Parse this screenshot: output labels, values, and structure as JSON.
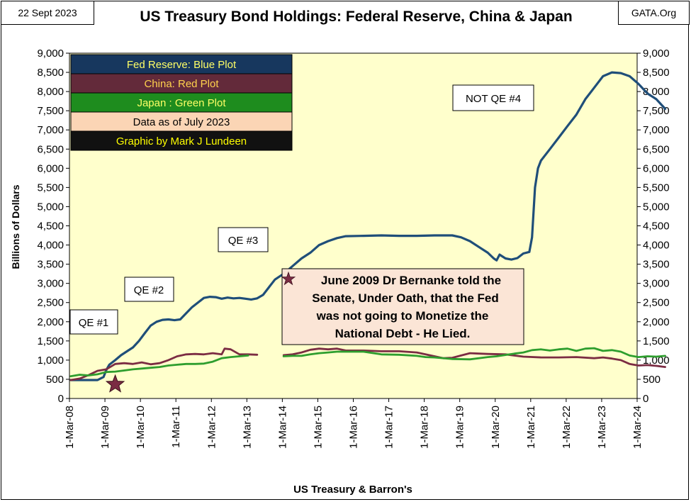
{
  "header": {
    "date": "22 Sept 2023",
    "title": "US Treasury Bond Holdings: Federal Reserve, China & Japan",
    "source": "GATA.Org"
  },
  "chart_data": {
    "type": "line",
    "xlabel": "US Treasury & Barron's",
    "ylabel": "Billions of Dollars",
    "ylim": [
      0,
      9000
    ],
    "xlim": [
      "2008-03-01",
      "2024-03-01"
    ],
    "y_ticks": [
      "0",
      "500",
      "1,000",
      "1,500",
      "2,000",
      "2,500",
      "3,000",
      "3,500",
      "4,000",
      "4,500",
      "5,000",
      "5,500",
      "6,000",
      "6,500",
      "7,000",
      "7,500",
      "8,000",
      "8,500",
      "9,000"
    ],
    "x_ticks": [
      "1-Mar-08",
      "1-Mar-09",
      "1-Mar-10",
      "1-Mar-11",
      "1-Mar-12",
      "1-Mar-13",
      "1-Mar-14",
      "1-Mar-15",
      "1-Mar-16",
      "1-Mar-17",
      "1-Mar-18",
      "1-Mar-19",
      "1-Mar-20",
      "1-Mar-21",
      "1-Mar-22",
      "1-Mar-23",
      "1-Mar-24"
    ],
    "grid": false,
    "legend": {
      "placement": "top-left",
      "items": [
        {
          "text": "Fed Reserve: Blue Plot",
          "bg": "#17375e",
          "color": "#ffff66"
        },
        {
          "text": "China: Red Plot",
          "bg": "#632a3a",
          "color": "#ffd24d"
        },
        {
          "text": "Japan : Green Plot",
          "bg": "#1e8c1e",
          "color": "#ffff66"
        },
        {
          "text": "Data as of July 2023",
          "bg": "#fbd5b5",
          "color": "#000000"
        },
        {
          "text": "Graphic by Mark J Lundeen",
          "bg": "#111111",
          "color": "#ffff00"
        }
      ]
    },
    "annotations": {
      "qe1": "QE #1",
      "qe2": "QE #2",
      "qe3": "QE #3",
      "qe4": "NOT QE #4",
      "note_lines": [
        "June 2009 Dr Bernanke told the",
        "Senate, Under Oath, that the Fed",
        "was not going to Monetize the",
        "National Debt - He Lied."
      ],
      "star_date": "2009-06"
    },
    "series": [
      {
        "name": "Fed Reserve",
        "color": "#1f4e79",
        "points": [
          [
            "2008-03",
            480
          ],
          [
            "2008-06",
            480
          ],
          [
            "2008-09",
            480
          ],
          [
            "2008-12",
            480
          ],
          [
            "2009-02",
            560
          ],
          [
            "2009-03",
            740
          ],
          [
            "2009-04",
            880
          ],
          [
            "2009-06",
            1000
          ],
          [
            "2009-08",
            1130
          ],
          [
            "2009-10",
            1230
          ],
          [
            "2009-12",
            1330
          ],
          [
            "2010-02",
            1500
          ],
          [
            "2010-04",
            1700
          ],
          [
            "2010-06",
            1900
          ],
          [
            "2010-08",
            2000
          ],
          [
            "2010-10",
            2050
          ],
          [
            "2010-12",
            2060
          ],
          [
            "2011-02",
            2040
          ],
          [
            "2011-04",
            2060
          ],
          [
            "2011-06",
            2220
          ],
          [
            "2011-08",
            2380
          ],
          [
            "2011-10",
            2500
          ],
          [
            "2011-12",
            2620
          ],
          [
            "2012-02",
            2650
          ],
          [
            "2012-04",
            2640
          ],
          [
            "2012-06",
            2600
          ],
          [
            "2012-08",
            2630
          ],
          [
            "2012-10",
            2610
          ],
          [
            "2012-12",
            2620
          ],
          [
            "2013-02",
            2600
          ],
          [
            "2013-04",
            2580
          ],
          [
            "2013-06",
            2610
          ],
          [
            "2013-08",
            2700
          ],
          [
            "2013-10",
            2900
          ],
          [
            "2013-12",
            3100
          ],
          [
            "2014-03",
            3250
          ],
          [
            "2014-06",
            3450
          ],
          [
            "2014-09",
            3650
          ],
          [
            "2014-12",
            3800
          ],
          [
            "2015-03",
            4000
          ],
          [
            "2015-06",
            4100
          ],
          [
            "2015-09",
            4180
          ],
          [
            "2015-12",
            4230
          ],
          [
            "2016-06",
            4240
          ],
          [
            "2016-12",
            4250
          ],
          [
            "2017-06",
            4240
          ],
          [
            "2017-12",
            4240
          ],
          [
            "2018-06",
            4250
          ],
          [
            "2018-12",
            4250
          ],
          [
            "2019-03",
            4200
          ],
          [
            "2019-06",
            4100
          ],
          [
            "2019-09",
            3950
          ],
          [
            "2019-12",
            3800
          ],
          [
            "2020-02",
            3650
          ],
          [
            "2020-03",
            3600
          ],
          [
            "2020-04",
            3750
          ],
          [
            "2020-06",
            3650
          ],
          [
            "2020-08",
            3620
          ],
          [
            "2020-10",
            3660
          ],
          [
            "2020-12",
            3780
          ],
          [
            "2021-02",
            3820
          ],
          [
            "2021-03",
            4200
          ],
          [
            "2021-04",
            5500
          ],
          [
            "2021-05",
            6000
          ],
          [
            "2021-06",
            6200
          ],
          [
            "2021-09",
            6500
          ],
          [
            "2021-12",
            6800
          ],
          [
            "2022-03",
            7100
          ],
          [
            "2022-06",
            7400
          ],
          [
            "2022-09",
            7800
          ],
          [
            "2022-12",
            8100
          ],
          [
            "2023-03",
            8400
          ],
          [
            "2023-06",
            8500
          ],
          [
            "2023-09",
            8480
          ],
          [
            "2023-12",
            8400
          ],
          [
            "2024-03",
            8200
          ],
          [
            "2024-06",
            7950
          ],
          [
            "2024-09",
            7800
          ],
          [
            "2024-12",
            7550
          ]
        ]
      },
      {
        "name": "China",
        "color": "#7b2c43",
        "points": [
          [
            "2008-03",
            480
          ],
          [
            "2008-06",
            520
          ],
          [
            "2008-09",
            610
          ],
          [
            "2008-12",
            720
          ],
          [
            "2009-03",
            760
          ],
          [
            "2009-06",
            900
          ],
          [
            "2009-09",
            920
          ],
          [
            "2009-12",
            900
          ],
          [
            "2010-03",
            940
          ],
          [
            "2010-06",
            890
          ],
          [
            "2010-09",
            920
          ],
          [
            "2010-12",
            1000
          ],
          [
            "2011-03",
            1100
          ],
          [
            "2011-06",
            1150
          ],
          [
            "2011-09",
            1160
          ],
          [
            "2011-12",
            1150
          ],
          [
            "2012-03",
            1180
          ],
          [
            "2012-06",
            1150
          ],
          [
            "2012-07",
            1300
          ],
          [
            "2012-09",
            1280
          ],
          [
            "2012-12",
            1150
          ],
          [
            "2013-03",
            1150
          ],
          [
            "2013-06",
            1140
          ],
          null,
          [
            "2014-03",
            1130
          ],
          [
            "2014-06",
            1150
          ],
          [
            "2014-09",
            1200
          ],
          [
            "2014-12",
            1270
          ],
          [
            "2015-03",
            1300
          ],
          [
            "2015-06",
            1280
          ],
          [
            "2015-09",
            1300
          ],
          [
            "2015-12",
            1250
          ],
          [
            "2016-06",
            1250
          ],
          [
            "2016-12",
            1230
          ],
          [
            "2017-06",
            1230
          ],
          [
            "2017-12",
            1200
          ],
          [
            "2018-03",
            1150
          ],
          [
            "2018-06",
            1100
          ],
          [
            "2018-09",
            1050
          ],
          [
            "2018-12",
            1060
          ],
          [
            "2019-03",
            1120
          ],
          [
            "2019-06",
            1180
          ],
          [
            "2019-09",
            1170
          ],
          [
            "2019-12",
            1160
          ],
          [
            "2020-06",
            1150
          ],
          [
            "2020-12",
            1090
          ],
          [
            "2021-06",
            1070
          ],
          [
            "2021-12",
            1070
          ],
          [
            "2022-06",
            1080
          ],
          [
            "2022-12",
            1050
          ],
          [
            "2023-03",
            1070
          ],
          [
            "2023-06",
            1040
          ],
          [
            "2023-09",
            1000
          ],
          [
            "2023-12",
            900
          ],
          [
            "2024-03",
            860
          ],
          [
            "2024-06",
            870
          ],
          [
            "2024-09",
            850
          ],
          [
            "2024-12",
            820
          ]
        ]
      },
      {
        "name": "Japan",
        "color": "#2e9e2e",
        "points": [
          [
            "2008-03",
            580
          ],
          [
            "2008-06",
            620
          ],
          [
            "2008-09",
            600
          ],
          [
            "2008-12",
            630
          ],
          [
            "2009-03",
            690
          ],
          [
            "2009-06",
            700
          ],
          [
            "2009-09",
            730
          ],
          [
            "2009-12",
            760
          ],
          [
            "2010-03",
            780
          ],
          [
            "2010-06",
            800
          ],
          [
            "2010-09",
            820
          ],
          [
            "2010-12",
            860
          ],
          [
            "2011-03",
            880
          ],
          [
            "2011-06",
            900
          ],
          [
            "2011-09",
            900
          ],
          [
            "2011-12",
            910
          ],
          [
            "2012-03",
            960
          ],
          [
            "2012-06",
            1050
          ],
          [
            "2012-09",
            1080
          ],
          [
            "2012-12",
            1100
          ],
          [
            "2013-03",
            1120
          ],
          null,
          [
            "2014-03",
            1100
          ],
          [
            "2014-06",
            1110
          ],
          [
            "2014-09",
            1110
          ],
          [
            "2014-12",
            1150
          ],
          [
            "2015-03",
            1180
          ],
          [
            "2015-06",
            1200
          ],
          [
            "2015-09",
            1220
          ],
          [
            "2015-12",
            1220
          ],
          [
            "2016-06",
            1220
          ],
          [
            "2016-12",
            1150
          ],
          [
            "2017-06",
            1140
          ],
          [
            "2017-12",
            1110
          ],
          [
            "2018-03",
            1080
          ],
          [
            "2018-06",
            1070
          ],
          [
            "2018-12",
            1030
          ],
          [
            "2019-06",
            1020
          ],
          [
            "2019-12",
            1080
          ],
          [
            "2020-03",
            1100
          ],
          [
            "2020-09",
            1170
          ],
          [
            "2020-12",
            1200
          ],
          [
            "2021-03",
            1260
          ],
          [
            "2021-06",
            1280
          ],
          [
            "2021-09",
            1250
          ],
          [
            "2021-12",
            1280
          ],
          [
            "2022-03",
            1300
          ],
          [
            "2022-06",
            1240
          ],
          [
            "2022-09",
            1300
          ],
          [
            "2022-12",
            1310
          ],
          [
            "2023-03",
            1240
          ],
          [
            "2023-06",
            1260
          ],
          [
            "2023-09",
            1220
          ],
          [
            "2023-12",
            1120
          ],
          [
            "2024-03",
            1080
          ],
          [
            "2024-06",
            1100
          ],
          [
            "2024-09",
            1090
          ],
          [
            "2024-12",
            1110
          ]
        ]
      }
    ]
  }
}
